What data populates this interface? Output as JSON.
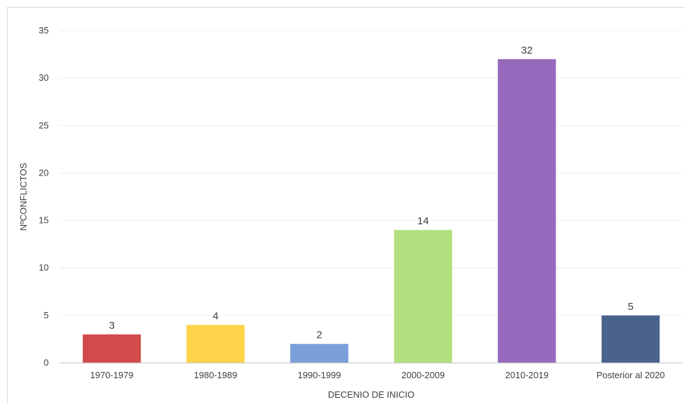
{
  "chart_data": {
    "type": "bar",
    "title": "",
    "xlabel": "DECENIO DE INICIO",
    "ylabel": "NºCONFLICTOS",
    "categories": [
      "1970-1979",
      "1980-1989",
      "1990-1999",
      "2000-2009",
      "2010-2019",
      "Posterior al 2020"
    ],
    "values": [
      3,
      4,
      2,
      14,
      32,
      5
    ],
    "colors": [
      "#d24a4a",
      "#ffd44a",
      "#7b9fd8",
      "#b2e07f",
      "#966bbd",
      "#4a628e"
    ],
    "ylim": [
      0,
      35
    ],
    "yticks": [
      "0",
      "5",
      "10",
      "15",
      "20",
      "25",
      "30",
      "35"
    ],
    "data_labels": [
      "3",
      "4",
      "2",
      "14",
      "32",
      "5"
    ],
    "grid": true,
    "legend": "none"
  }
}
